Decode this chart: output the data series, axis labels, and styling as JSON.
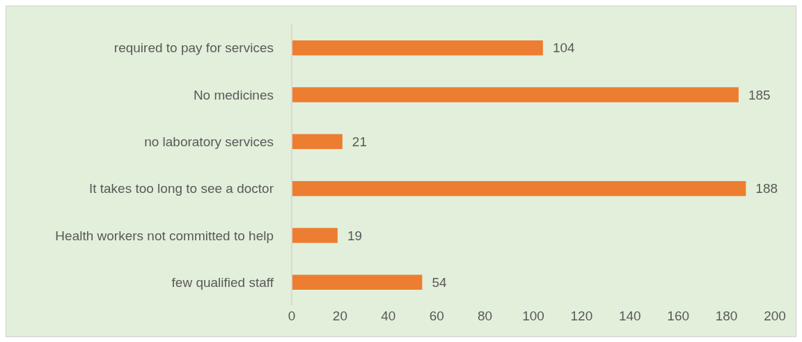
{
  "chart_data": {
    "type": "bar",
    "orientation": "horizontal",
    "categories": [
      "required to pay for services",
      "No medicines",
      "no laboratory services",
      "It takes too long to see a doctor",
      "Health workers not committed to help",
      "few qualified staff"
    ],
    "values": [
      104,
      185,
      21,
      188,
      19,
      54
    ],
    "color": "#ed7d31",
    "xlim": [
      0,
      200
    ],
    "xticks": [
      0,
      20,
      40,
      60,
      80,
      100,
      120,
      140,
      160,
      180,
      200
    ],
    "data_labels": true
  }
}
